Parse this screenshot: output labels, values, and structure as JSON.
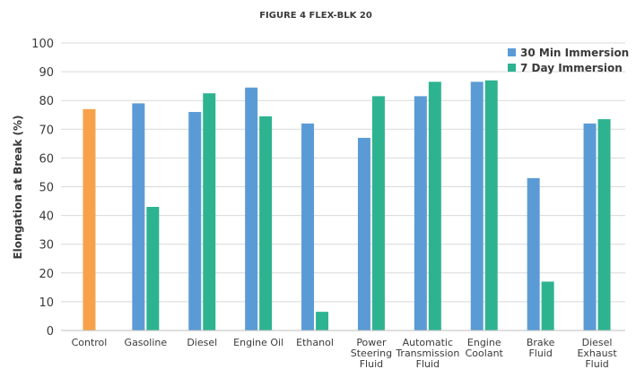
{
  "chart_data": {
    "type": "bar",
    "title": "FIGURE 4 FLEX-BLK 20",
    "ylabel": "Elongation at Break (%)",
    "xlabel": "",
    "ylim": [
      0,
      100
    ],
    "yticks": [
      0,
      10,
      20,
      30,
      40,
      50,
      60,
      70,
      80,
      90,
      100
    ],
    "grid": true,
    "legend_position": "top-right",
    "categories": [
      [
        "Control"
      ],
      [
        "Gasoline"
      ],
      [
        "Diesel"
      ],
      [
        "Engine Oil"
      ],
      [
        "Ethanol"
      ],
      [
        "Power",
        "Steering",
        "Fluid"
      ],
      [
        "Automatic",
        "Transmission",
        "Fluid"
      ],
      [
        "Engine",
        "Coolant"
      ],
      [
        "Brake",
        "Fluid"
      ],
      [
        "Diesel",
        "Exhaust",
        "Fluid"
      ]
    ],
    "control": {
      "value": 77,
      "color": "#f7a24a"
    },
    "series": [
      {
        "name": "30 Min Immersion",
        "color": "#5b9bd5",
        "values": [
          null,
          79,
          76,
          84.5,
          72,
          67,
          81.5,
          86.5,
          53,
          72
        ]
      },
      {
        "name": "7 Day Immersion",
        "color": "#2eb391",
        "values": [
          null,
          43,
          82.5,
          74.5,
          6.5,
          81.5,
          86.5,
          87,
          17,
          73.5
        ]
      }
    ]
  }
}
